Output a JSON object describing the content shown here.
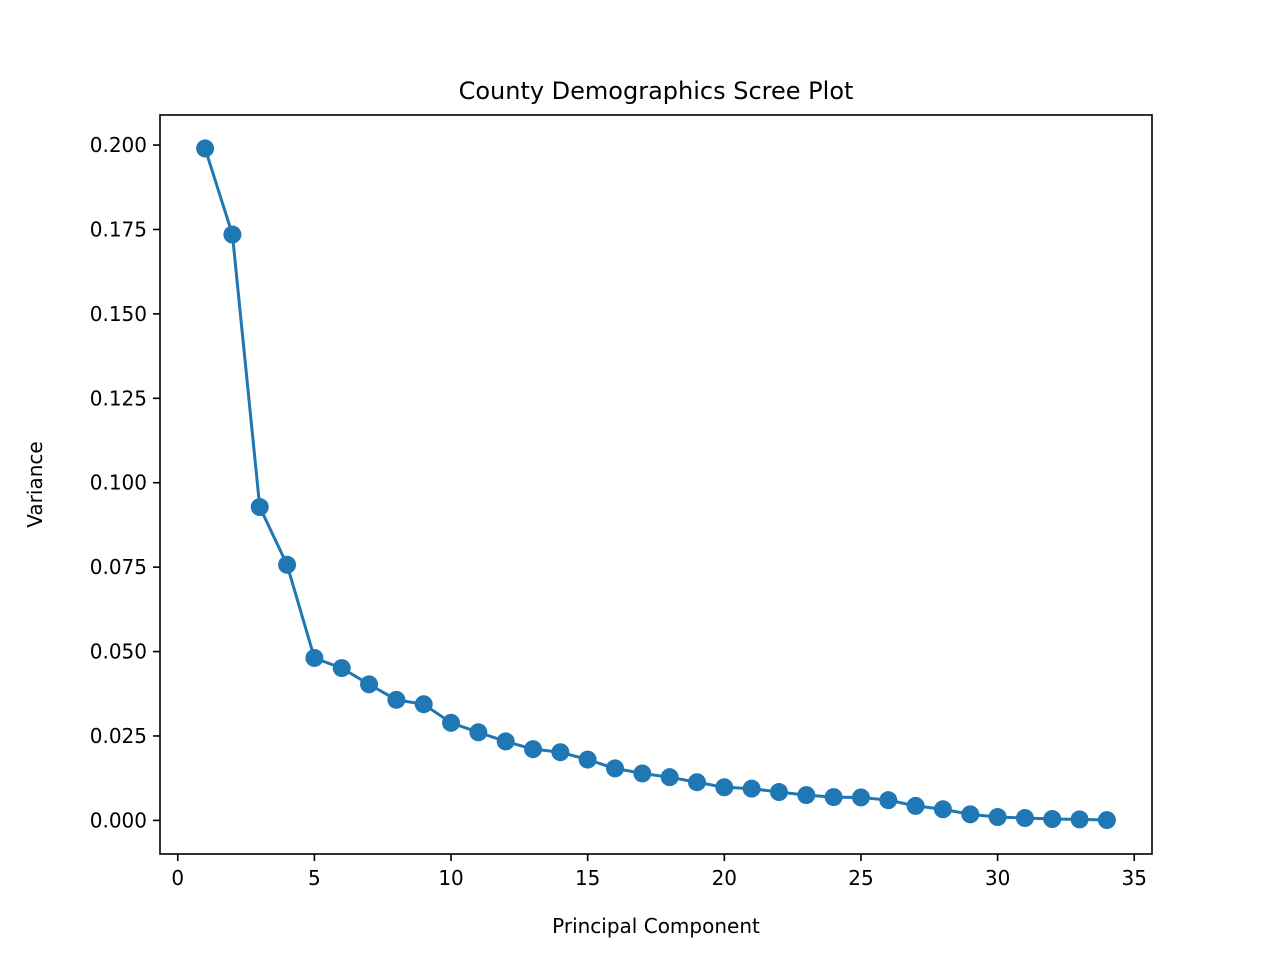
{
  "chart_data": {
    "type": "line",
    "title": "County Demographics Scree Plot",
    "xlabel": "Principal Component",
    "ylabel": "Variance",
    "xlim": [
      -0.65,
      35.65
    ],
    "ylim": [
      -0.00995,
      0.2089
    ],
    "x_ticks": [
      0,
      5,
      10,
      15,
      20,
      25,
      30,
      35
    ],
    "x_tick_labels": [
      "0",
      "5",
      "10",
      "15",
      "20",
      "25",
      "30",
      "35"
    ],
    "y_ticks": [
      0.0,
      0.025,
      0.05,
      0.075,
      0.1,
      0.125,
      0.15,
      0.175,
      0.2
    ],
    "y_tick_labels": [
      "0.000",
      "0.025",
      "0.050",
      "0.075",
      "0.100",
      "0.125",
      "0.150",
      "0.175",
      "0.200"
    ],
    "grid": false,
    "legend": "none",
    "series": [
      {
        "color": "#1f77b4",
        "marker": "circle",
        "x": [
          1,
          2,
          3,
          4,
          5,
          6,
          7,
          8,
          9,
          10,
          11,
          12,
          13,
          14,
          15,
          16,
          17,
          18,
          19,
          20,
          21,
          22,
          23,
          24,
          25,
          26,
          27,
          28,
          29,
          30,
          31,
          32,
          33,
          34
        ],
        "values": [
          0.199,
          0.1735,
          0.0928,
          0.0757,
          0.0481,
          0.0451,
          0.0403,
          0.0357,
          0.0344,
          0.0289,
          0.0261,
          0.0234,
          0.0211,
          0.0202,
          0.018,
          0.0154,
          0.0139,
          0.0128,
          0.0113,
          0.0098,
          0.0094,
          0.0084,
          0.0075,
          0.0069,
          0.0068,
          0.006,
          0.0043,
          0.0033,
          0.0018,
          0.001,
          0.0007,
          0.0004,
          0.0003,
          0.0001
        ]
      }
    ]
  }
}
